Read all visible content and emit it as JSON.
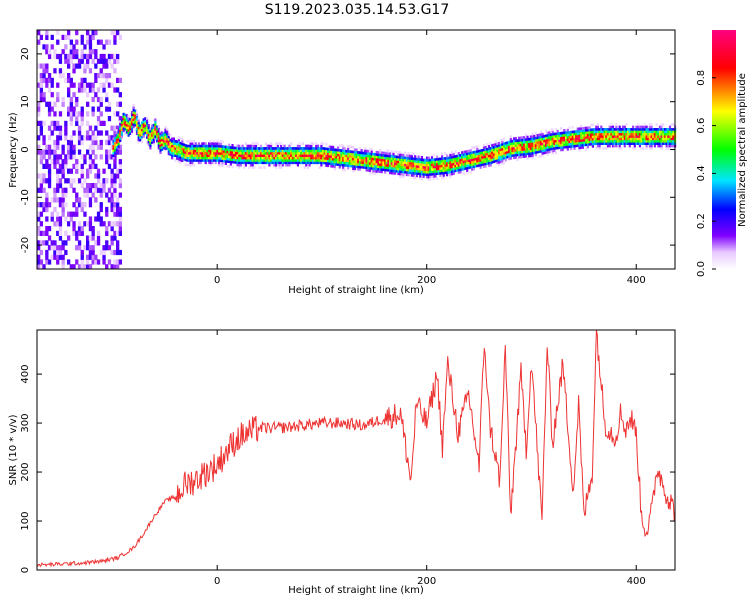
{
  "title": "S119.2023.035.14.53.G17",
  "chart_data": [
    {
      "type": "heatmap",
      "xlabel": "Height of straight line (km)",
      "ylabel": "Frequency (Hz)",
      "xlim": [
        -172,
        437
      ],
      "ylim": [
        -25,
        25
      ],
      "xticks": [
        0,
        200,
        400
      ],
      "yticks": [
        -20,
        -10,
        0,
        10,
        20
      ],
      "colorbar": {
        "label": "Normalized spectral amplitude",
        "range": [
          0,
          1
        ],
        "ticks": [
          0.0,
          0.2,
          0.4,
          0.6,
          0.8
        ],
        "colors": [
          "#ffffff",
          "#8000ff",
          "#0000ff",
          "#00e5ff",
          "#00ff00",
          "#ffff00",
          "#ff0000",
          "#ff0080"
        ]
      },
      "ridge": {
        "x": [
          -100,
          -95,
          -90,
          -85,
          -80,
          -75,
          -70,
          -65,
          -60,
          -55,
          -50,
          -45,
          -40,
          -30,
          -20,
          0,
          20,
          40,
          60,
          80,
          100,
          120,
          140,
          160,
          180,
          200,
          220,
          240,
          260,
          280,
          300,
          320,
          340,
          360,
          380,
          400,
          420,
          437
        ],
        "y": [
          0,
          2,
          6,
          4,
          7,
          3,
          5,
          2,
          4,
          1,
          2,
          0,
          0,
          -1,
          -1,
          -1,
          -1.5,
          -1.5,
          -1.5,
          -1.5,
          -1.5,
          -2,
          -2.5,
          -3,
          -3.5,
          -4,
          -3.5,
          -2.5,
          -1.5,
          0,
          0.5,
          1.5,
          2,
          2.5,
          2.5,
          2.5,
          2.5,
          2.5
        ]
      },
      "noise_region": {
        "x_range": [
          -172,
          -92
        ],
        "y_range": [
          -25,
          25
        ]
      }
    },
    {
      "type": "line",
      "xlabel": "Height of straight line (km)",
      "ylabel": "SNR (10 * v/v)",
      "xlim": [
        -172,
        437
      ],
      "ylim": [
        0,
        490
      ],
      "xticks": [
        0,
        200,
        400
      ],
      "yticks": [
        0,
        100,
        200,
        300,
        400
      ],
      "color": "#ee3333",
      "series": [
        {
          "x": [
            -172,
            -150,
            -130,
            -110,
            -95,
            -80,
            -70,
            -60,
            -50,
            -40,
            -30,
            -20,
            -10,
            0,
            10,
            20,
            30,
            40,
            60,
            80,
            100,
            120,
            140,
            160,
            175,
            185,
            190,
            200,
            210,
            215,
            220,
            230,
            240,
            250,
            255,
            260,
            270,
            275,
            280,
            290,
            295,
            300,
            310,
            315,
            320,
            330,
            340,
            345,
            350,
            358,
            362,
            370,
            380,
            385,
            390,
            395,
            400,
            405,
            410,
            415,
            420,
            430,
            437
          ],
          "y": [
            10,
            12,
            14,
            18,
            25,
            45,
            75,
            110,
            140,
            150,
            175,
            185,
            200,
            215,
            245,
            270,
            280,
            290,
            290,
            295,
            300,
            300,
            295,
            310,
            320,
            180,
            340,
            300,
            400,
            250,
            420,
            280,
            360,
            210,
            470,
            300,
            180,
            460,
            110,
            400,
            250,
            430,
            100,
            460,
            260,
            420,
            160,
            340,
            110,
            200,
            490,
            300,
            270,
            320,
            290,
            310,
            280,
            110,
            80,
            120,
            210,
            150,
            120
          ]
        }
      ]
    }
  ]
}
